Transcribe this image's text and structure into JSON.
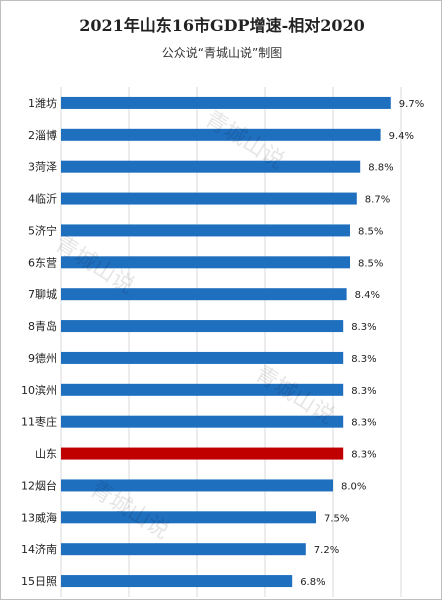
{
  "chart_data": {
    "type": "bar",
    "orientation": "horizontal",
    "title": "2021年山东16市GDP增速-相对2020",
    "subtitle": "公众说“青城山说”制图",
    "watermark": "青城山说",
    "categories": [
      "1潍坊",
      "2淄博",
      "3菏泽",
      "4临沂",
      "5济宁",
      "6东营",
      "7聊城",
      "8青岛",
      "9德州",
      "10滨州",
      "11枣庄",
      "山东",
      "12烟台",
      "13威海",
      "14济南",
      "15日照"
    ],
    "values": [
      9.7,
      9.4,
      8.8,
      8.7,
      8.5,
      8.5,
      8.4,
      8.3,
      8.3,
      8.3,
      8.3,
      8.3,
      8.0,
      7.5,
      7.2,
      6.8
    ],
    "value_labels": [
      "9.7%",
      "9.4%",
      "8.8%",
      "8.7%",
      "8.5%",
      "8.5%",
      "8.4%",
      "8.3%",
      "8.3%",
      "8.3%",
      "8.3%",
      "8.3%",
      "8.0%",
      "7.5%",
      "7.2%",
      "6.8%"
    ],
    "highlight_category": "山东",
    "colors": {
      "bar": "#1f6fbf",
      "highlight": "#c00000",
      "grid": "#d9d9d9",
      "text": "#222222"
    },
    "xlim": [
      0,
      10
    ],
    "grid": true,
    "legend": "none"
  }
}
